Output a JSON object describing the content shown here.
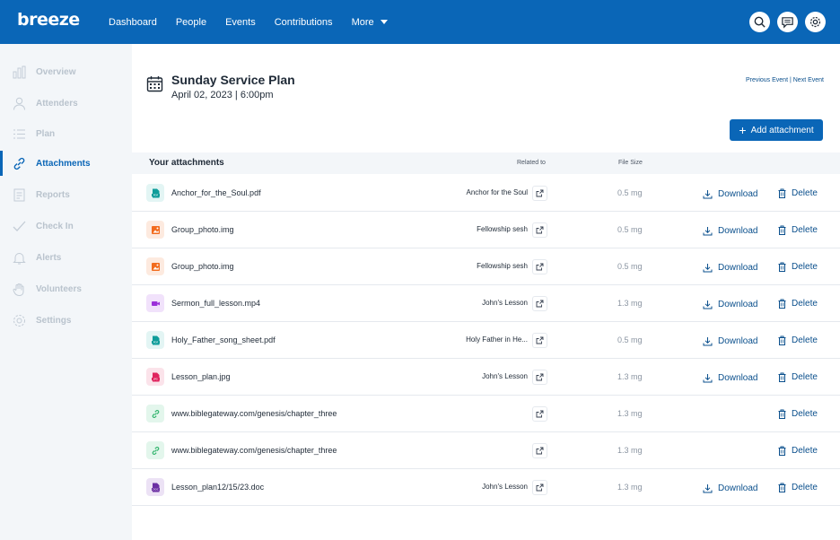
{
  "brand": "breeze",
  "nav": [
    "Dashboard",
    "People",
    "Events",
    "Contributions",
    "More"
  ],
  "sidebar": [
    {
      "label": "Overview",
      "icon": "bar-chart-icon"
    },
    {
      "label": "Attenders",
      "icon": "person-icon"
    },
    {
      "label": "Plan",
      "icon": "list-icon"
    },
    {
      "label": "Attachments",
      "icon": "link-icon",
      "active": true
    },
    {
      "label": "Reports",
      "icon": "report-icon"
    },
    {
      "label": "Check In",
      "icon": "check-icon"
    },
    {
      "label": "Alerts",
      "icon": "bell-icon"
    },
    {
      "label": "Volunteers",
      "icon": "hand-icon"
    },
    {
      "label": "Settings",
      "icon": "gear-icon"
    }
  ],
  "event": {
    "title": "Sunday Service Plan",
    "date": "April 02, 2023 | 6:00pm",
    "previous": "Previous Event",
    "separator": " | ",
    "next": "Next Event"
  },
  "add_attachment": "Add attachment",
  "table": {
    "heading": "Your attachments",
    "related_header": "Related to",
    "size_header": "File Size",
    "download_label": "Download",
    "delete_label": "Delete",
    "rows": [
      {
        "name": "Anchor_for_the_Soul.pdf",
        "type": "pdf",
        "related": "Anchor for the Soul",
        "size": "0.5 mg",
        "download": true
      },
      {
        "name": "Group_photo.img",
        "type": "img",
        "related": "Fellowship sesh",
        "size": "0.5 mg",
        "download": true
      },
      {
        "name": "Group_photo.img",
        "type": "img",
        "related": "Fellowship sesh",
        "size": "0.5 mg",
        "download": true
      },
      {
        "name": "Sermon_full_lesson.mp4",
        "type": "video",
        "related": "John's Lesson",
        "size": "1.3 mg",
        "download": true
      },
      {
        "name": "Holy_Father_song_sheet.pdf",
        "type": "pdf",
        "related": "Holy Father in He...",
        "size": "0.5 mg",
        "download": true
      },
      {
        "name": "Lesson_plan.jpg",
        "type": "jpg",
        "related": "John's Lesson",
        "size": "1.3 mg",
        "download": true
      },
      {
        "name": "www.biblegateway.com/genesis/chapter_three",
        "type": "link",
        "related": "",
        "size": "1.3 mg",
        "download": false
      },
      {
        "name": "www.biblegateway.com/genesis/chapter_three",
        "type": "link",
        "related": "",
        "size": "1.3 mg",
        "download": false
      },
      {
        "name": "Lesson_plan12/15/23.doc",
        "type": "doc",
        "related": "John's Lesson",
        "size": "1.3 mg",
        "download": true
      }
    ]
  },
  "colors": {
    "brand_blue": "#0a66b7",
    "pdf": "#0f9d9a",
    "img": "#f26b1d",
    "video": "#9b30d9",
    "jpg": "#e0245e",
    "link": "#2fb36b",
    "doc": "#6b2fa3"
  }
}
